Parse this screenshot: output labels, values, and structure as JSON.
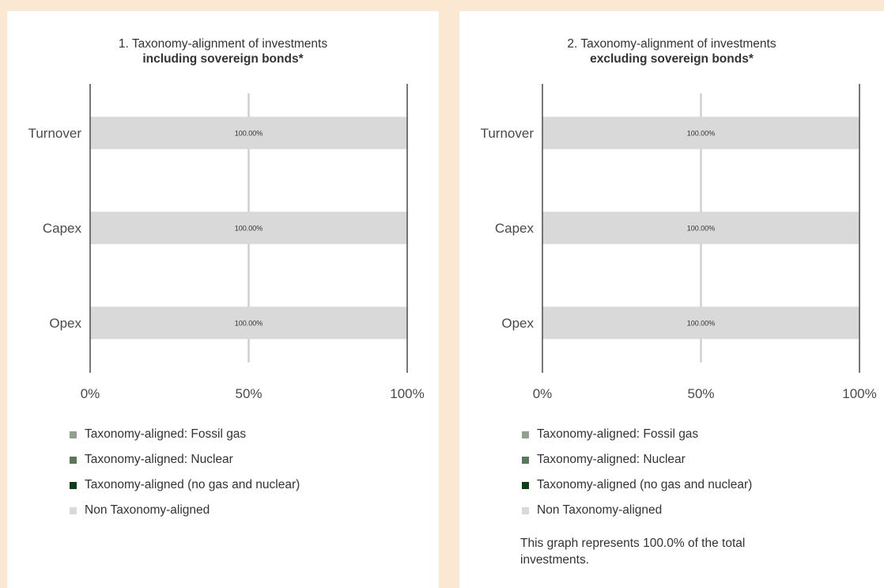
{
  "chart_data": [
    {
      "type": "bar",
      "orientation": "horizontal",
      "stacked": true,
      "title": "1. Taxonomy-alignment of investments",
      "subtitle": "including sovereign bonds*",
      "categories": [
        "Turnover",
        "Capex",
        "Opex"
      ],
      "series": [
        {
          "name": "Taxonomy-aligned: Fossil gas",
          "color": "#8fa38a",
          "values": [
            0,
            0,
            0
          ]
        },
        {
          "name": "Taxonomy-aligned: Nuclear",
          "color": "#567a55",
          "values": [
            0,
            0,
            0
          ]
        },
        {
          "name": "Taxonomy-aligned (no gas and nuclear)",
          "color": "#0f3d14",
          "values": [
            0,
            0,
            0
          ]
        },
        {
          "name": "Non Taxonomy-aligned",
          "color": "#d9d9d9",
          "values": [
            100,
            100,
            100
          ]
        }
      ],
      "data_labels": [
        "100.00%",
        "100.00%",
        "100.00%"
      ],
      "xlim": [
        0,
        100
      ],
      "xticks": [
        "0%",
        "50%",
        "100%"
      ],
      "grid": true,
      "legend_position": "bottom"
    },
    {
      "type": "bar",
      "orientation": "horizontal",
      "stacked": true,
      "title": "2. Taxonomy-alignment of investments",
      "subtitle": "excluding sovereign bonds*",
      "categories": [
        "Turnover",
        "Capex",
        "Opex"
      ],
      "series": [
        {
          "name": "Taxonomy-aligned: Fossil gas",
          "color": "#8fa38a",
          "values": [
            0,
            0,
            0
          ]
        },
        {
          "name": "Taxonomy-aligned: Nuclear",
          "color": "#567a55",
          "values": [
            0,
            0,
            0
          ]
        },
        {
          "name": "Taxonomy-aligned (no gas and nuclear)",
          "color": "#0f3d14",
          "values": [
            0,
            0,
            0
          ]
        },
        {
          "name": "Non Taxonomy-aligned",
          "color": "#d9d9d9",
          "values": [
            100,
            100,
            100
          ]
        }
      ],
      "data_labels": [
        "100.00%",
        "100.00%",
        "100.00%"
      ],
      "xlim": [
        0,
        100
      ],
      "xticks": [
        "0%",
        "50%",
        "100%"
      ],
      "grid": true,
      "legend_position": "bottom",
      "footnote": "This graph represents 100.0% of the total investments."
    }
  ]
}
